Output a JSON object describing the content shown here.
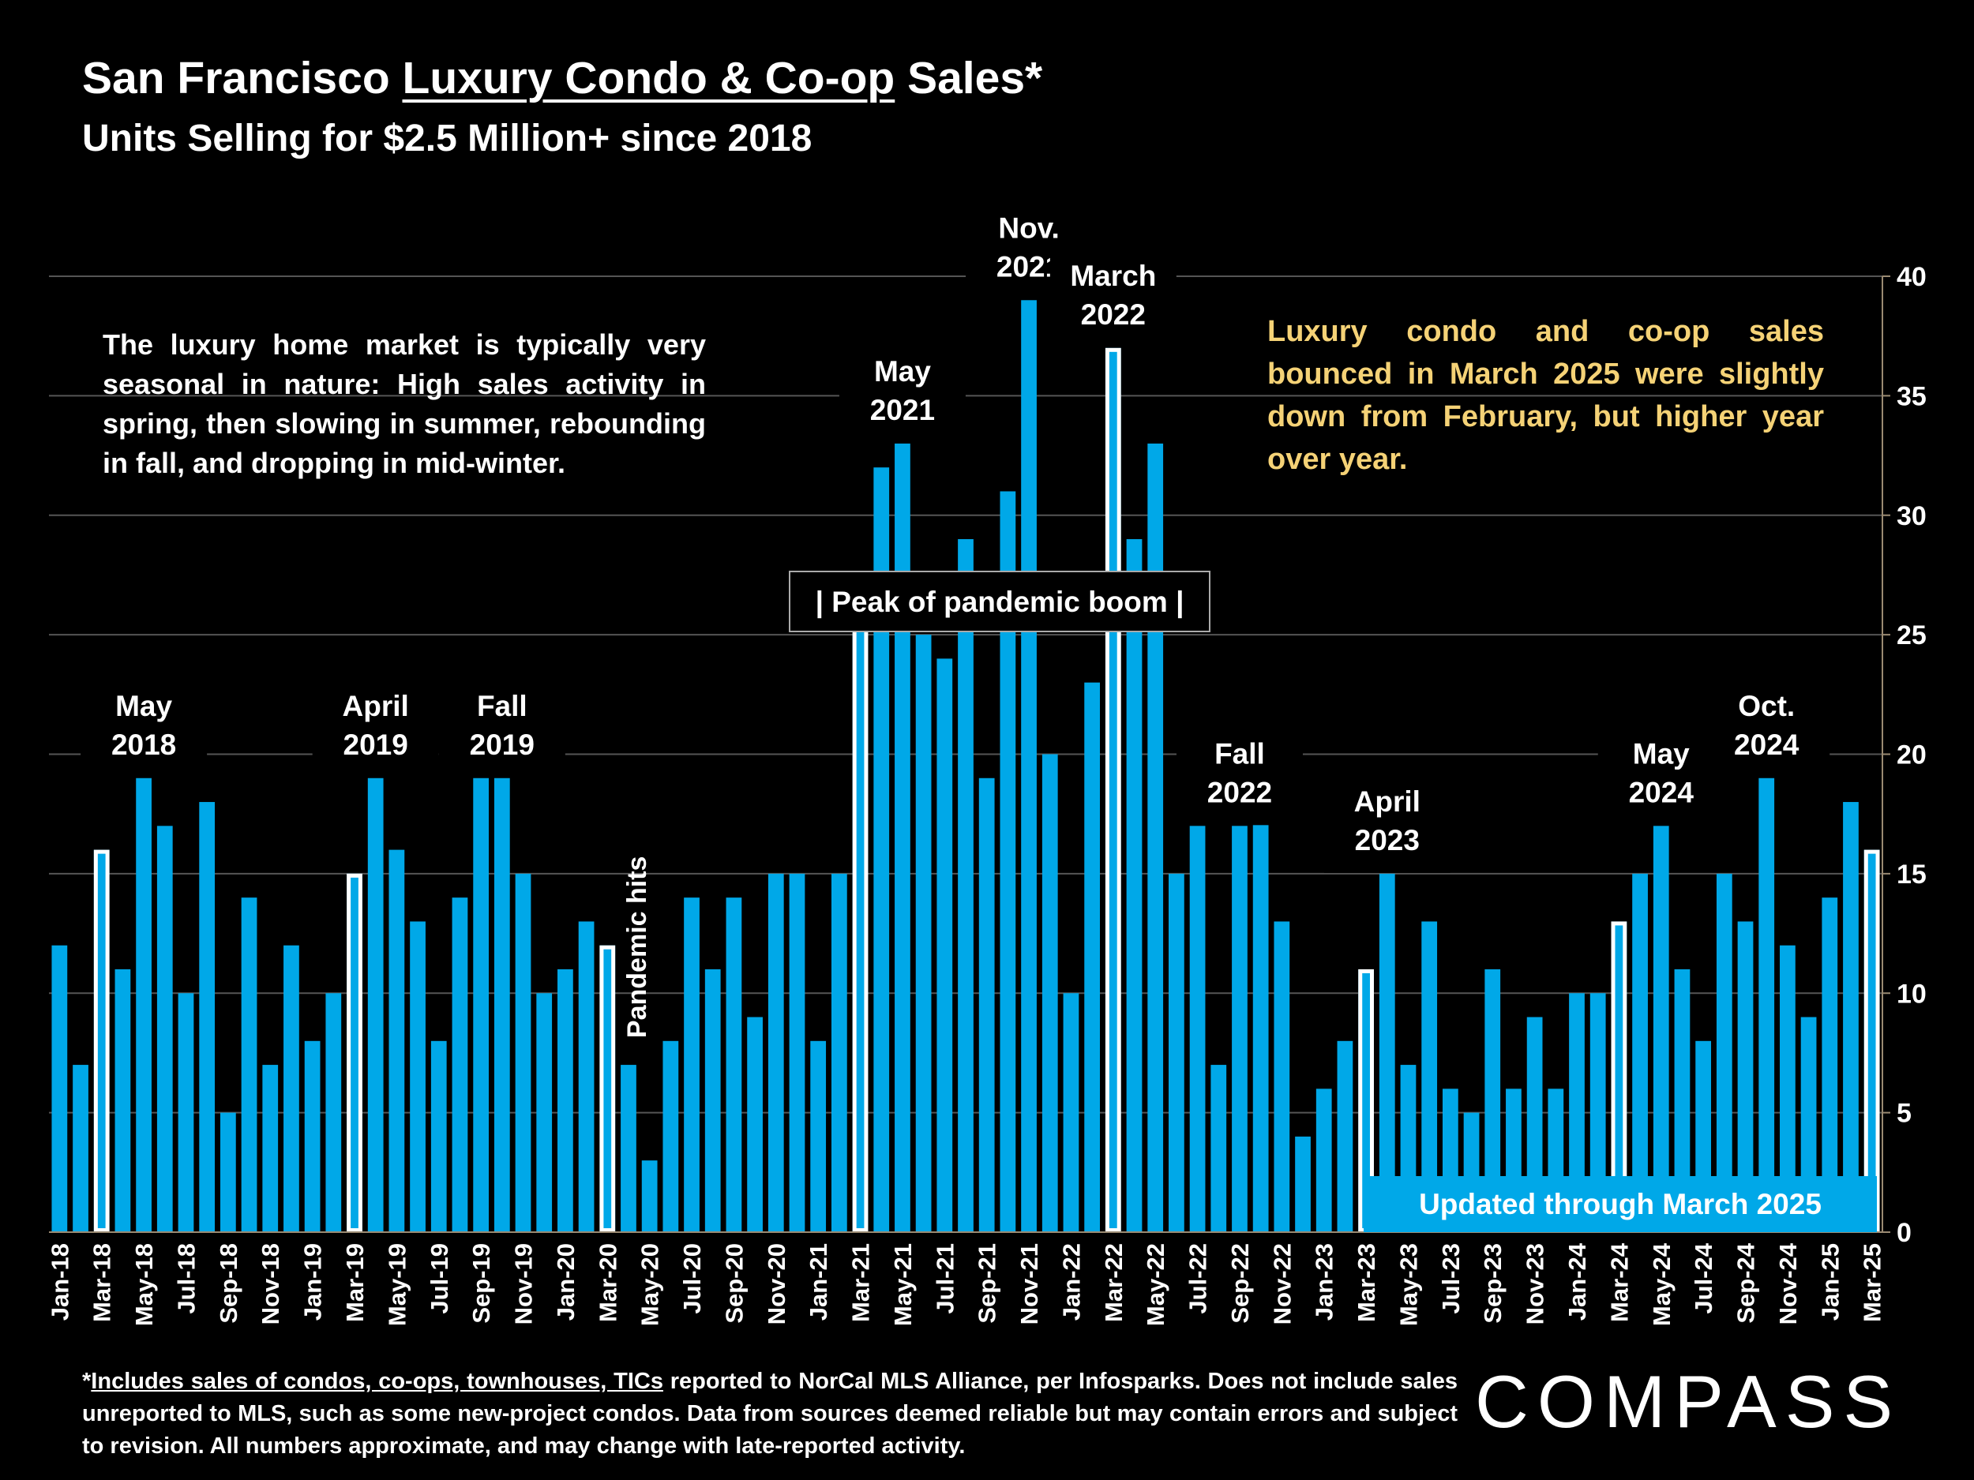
{
  "header": {
    "title_pre": "San Francisco ",
    "title_underlined": "Luxury Condo & Co-op",
    "title_post": " Sales*",
    "subtitle": "Units Selling for $2.5 Million+ since 2018"
  },
  "notes": {
    "left": "The luxury home market is typically very seasonal in nature:  High sales activity in spring, then slowing in summer, rebounding in fall, and dropping in mid-winter.",
    "right": "Luxury condo and co-op sales bounced in March 2025 were slightly down from February, but higher year over year."
  },
  "footnote": {
    "prefix": "*",
    "underlined": "Includes sales of condos, co-ops, townhouses, TICs",
    "rest": " reported to NorCal MLS Alliance, per Infosparks. Does not include sales unreported to MLS, such as some new-project condos. Data from sources deemed reliable but may contain errors and subject to revision.  All numbers approximate, and may change with late-reported activity."
  },
  "logo": "COMPASS",
  "colors": {
    "bar": "#00a8e8",
    "highlight_fill": "#00a8e8",
    "highlight_stroke": "#ffffff",
    "note_right": "#f5d276",
    "grid": "#555555"
  },
  "chart_data": {
    "type": "bar",
    "x": [
      "Jan-18",
      "Feb-18",
      "Mar-18",
      "Apr-18",
      "May-18",
      "Jun-18",
      "Jul-18",
      "Aug-18",
      "Sep-18",
      "Oct-18",
      "Nov-18",
      "Dec-18",
      "Jan-19",
      "Feb-19",
      "Mar-19",
      "Apr-19",
      "May-19",
      "Jun-19",
      "Jul-19",
      "Aug-19",
      "Sep-19",
      "Oct-19",
      "Nov-19",
      "Dec-19",
      "Jan-20",
      "Feb-20",
      "Mar-20",
      "Apr-20",
      "May-20",
      "Jun-20",
      "Jul-20",
      "Aug-20",
      "Sep-20",
      "Oct-20",
      "Nov-20",
      "Dec-20",
      "Jan-21",
      "Feb-21",
      "Mar-21",
      "Apr-21",
      "May-21",
      "Jun-21",
      "Jul-21",
      "Aug-21",
      "Sep-21",
      "Oct-21",
      "Nov-21",
      "Dec-21",
      "Jan-22",
      "Feb-22",
      "Mar-22",
      "Apr-22",
      "May-22",
      "Jun-22",
      "Jul-22",
      "Aug-22",
      "Sep-22",
      "Oct-22",
      "Nov-22",
      "Dec-22",
      "Jan-23",
      "Feb-23",
      "Mar-23",
      "Apr-23",
      "May-23",
      "Jun-23",
      "Jul-23",
      "Aug-23",
      "Sep-23",
      "Oct-23",
      "Nov-23",
      "Dec-23",
      "Jan-24",
      "Feb-24",
      "Mar-24",
      "Apr-24",
      "May-24",
      "Jun-24",
      "Jul-24",
      "Aug-24",
      "Sep-24",
      "Oct-24",
      "Nov-24",
      "Dec-24",
      "Jan-25",
      "Feb-25",
      "Mar-25"
    ],
    "tick_labels": [
      "Jan-18",
      "Mar-18",
      "May-18",
      "Jul-18",
      "Sep-18",
      "Nov-18",
      "Jan-19",
      "Mar-19",
      "May-19",
      "Jul-19",
      "Sep-19",
      "Nov-19",
      "Jan-20",
      "Mar-20",
      "May-20",
      "Jul-20",
      "Sep-20",
      "Nov-20",
      "Jan-21",
      "Mar-21",
      "May-21",
      "Jul-21",
      "Sep-21",
      "Nov-21",
      "Jan-22",
      "Mar-22",
      "May-22",
      "Jul-22",
      "Sep-22",
      "Nov-22",
      "Jan-23",
      "Mar-23",
      "May-23",
      "Jul-23",
      "Sep-23",
      "Nov-23",
      "Jan-24",
      "Mar-24",
      "May-24",
      "Jul-24",
      "Sep-24",
      "Nov-24",
      "Jan-25",
      "Mar-25"
    ],
    "values": [
      12,
      7,
      16,
      11,
      19,
      17,
      10,
      18,
      5,
      14,
      7,
      12,
      8,
      10,
      15,
      19,
      16,
      13,
      8,
      14,
      19,
      19,
      15,
      10,
      11,
      13,
      12,
      7,
      3,
      8,
      14,
      11,
      14,
      9,
      15,
      15,
      8,
      15,
      26,
      32,
      33,
      25,
      24,
      29,
      19,
      31,
      39,
      20,
      10,
      23,
      37,
      29,
      33,
      15,
      17,
      7,
      17,
      19,
      13,
      4,
      6,
      8,
      11,
      15,
      7,
      13,
      6,
      5,
      11,
      6,
      9,
      6,
      10,
      10,
      13,
      15,
      17,
      11,
      8,
      15,
      13,
      19,
      12,
      9,
      14,
      18,
      16
    ],
    "highlighted": [
      "Mar-18",
      "Mar-19",
      "Mar-20",
      "Mar-21",
      "Mar-22",
      "Mar-23",
      "Mar-24",
      "Mar-25"
    ],
    "ylim": [
      0,
      40
    ],
    "yticks": [
      0,
      5,
      10,
      15,
      20,
      25,
      30,
      35,
      40
    ],
    "y_axis_position": "right",
    "grid": true,
    "annotations": [
      {
        "x": "May-18",
        "lines": [
          "May",
          "2018"
        ]
      },
      {
        "x": "Apr-19",
        "lines": [
          "April",
          "2019"
        ]
      },
      {
        "x": "Oct-19",
        "lines": [
          "Fall",
          "2019"
        ]
      },
      {
        "x": "May-21",
        "lines": [
          "May",
          "2021"
        ]
      },
      {
        "x": "Nov-21",
        "lines": [
          "Nov.",
          "2021"
        ]
      },
      {
        "x": "Mar-22",
        "lines": [
          "March",
          "2022"
        ]
      },
      {
        "x": "Sep-22",
        "lines": [
          "Fall",
          "2022"
        ]
      },
      {
        "x": "Apr-23",
        "lines": [
          "April",
          "2023"
        ]
      },
      {
        "x": "May-24",
        "lines": [
          "May",
          "2024"
        ]
      },
      {
        "x": "Oct-24",
        "lines": [
          "Oct.",
          "2024"
        ]
      }
    ],
    "vertical_annotation": {
      "x": "Apr-20",
      "text": "Pandemic hits"
    },
    "boxed_labels": [
      {
        "text": "| Peak of pandemic boom |",
        "style": "outline"
      },
      {
        "text": "Updated through March 2025",
        "style": "filled"
      }
    ]
  }
}
